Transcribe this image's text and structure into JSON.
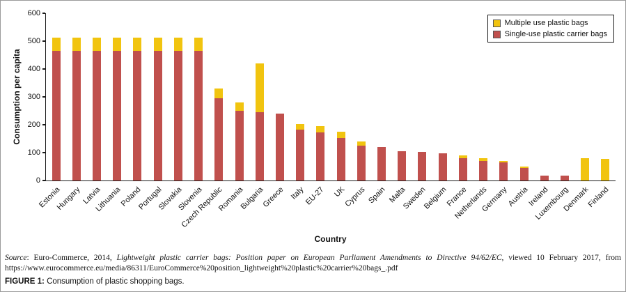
{
  "chart_data": {
    "type": "bar",
    "stacked": true,
    "title": "",
    "xlabel": "Country",
    "ylabel": "Consumption per capita",
    "ylim": [
      0,
      600
    ],
    "yticks": [
      0,
      100,
      200,
      300,
      400,
      500,
      600
    ],
    "grid": false,
    "legend_position": "top-right",
    "categories": [
      "Estonia",
      "Hungary",
      "Latvia",
      "Lithuania",
      "Poland",
      "Portugal",
      "Slovakia",
      "Slovenia",
      "Czech Republic",
      "Romania",
      "Bulgaria",
      "Greece",
      "Italy",
      "EU-27",
      "UK",
      "Cyprus",
      "Spain",
      "Malta",
      "Sweden",
      "Belgium",
      "France",
      "Netherlands",
      "Germany",
      "Austria",
      "Ireland",
      "Luxembourg",
      "Denmark",
      "Finland"
    ],
    "series": [
      {
        "name": "Multiple use plastic bags",
        "color": "#F1C40F",
        "values": [
          46,
          46,
          46,
          46,
          46,
          46,
          46,
          46,
          33,
          28,
          175,
          0,
          20,
          23,
          24,
          16,
          0,
          0,
          0,
          0,
          9,
          9,
          7,
          5,
          0,
          0,
          80,
          77
        ]
      },
      {
        "name": "Single-use plastic carrier bags",
        "color": "#C0504D",
        "values": [
          466,
          466,
          466,
          466,
          466,
          466,
          466,
          466,
          296,
          251,
          246,
          240,
          182,
          172,
          152,
          125,
          119,
          106,
          102,
          98,
          80,
          70,
          64,
          45,
          18,
          18,
          0,
          0
        ]
      }
    ]
  },
  "axes": {
    "y_title": "Consumption per capita",
    "x_title": "Country"
  },
  "source_note": {
    "label": "Source",
    "pre_italic": ": Euro-Commerce, 2014, ",
    "italic": "Lightweight plastic carrier bags: Position paper on European Parliament Amendments to Directive 94/62/EC",
    "post_italic": ", viewed 10 February 2017, from https://www.eurocommerce.eu/media/86311/EuroCommerce%20position_lightweight%20plastic%20carrier%20bags_.pdf"
  },
  "caption": {
    "label": "FIGURE 1:",
    "text": " Consumption of plastic shopping bags."
  }
}
